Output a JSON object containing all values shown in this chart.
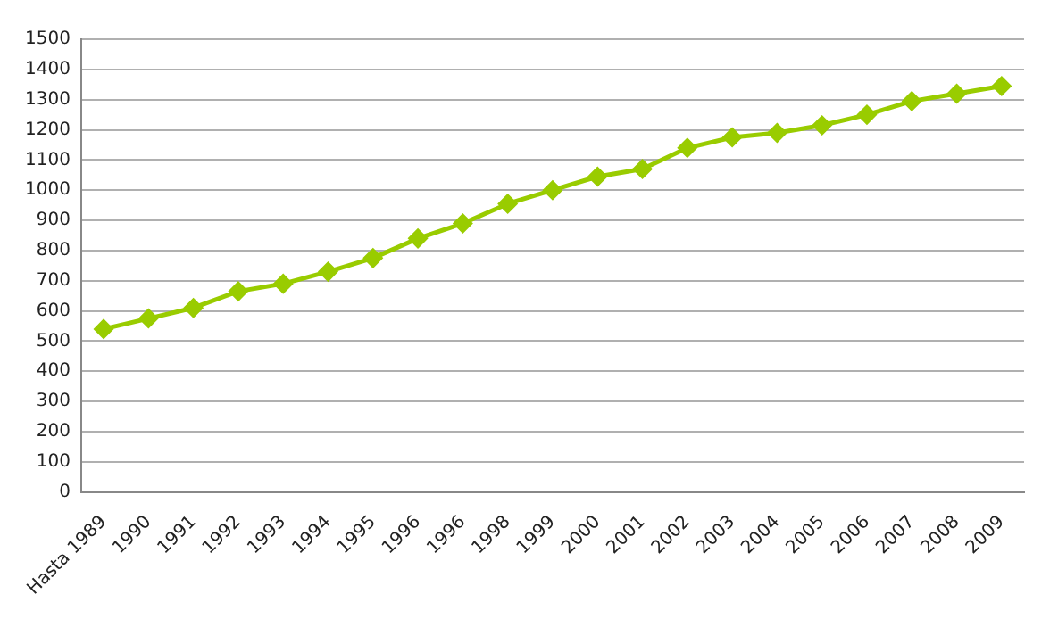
{
  "chart_data": {
    "type": "line",
    "categories": [
      "Hasta 1989",
      "1990",
      "1991",
      "1992",
      "1993",
      "1994",
      "1995",
      "1996",
      "1996",
      "1998",
      "1999",
      "2000",
      "2001",
      "2002",
      "2003",
      "2004",
      "2005",
      "2006",
      "2007",
      "2008",
      "2009"
    ],
    "series": [
      {
        "color": "#99cc00",
        "values": [
          540,
          575,
          610,
          665,
          690,
          730,
          775,
          840,
          890,
          955,
          1000,
          1045,
          1070,
          1140,
          1175,
          1190,
          1215,
          1250,
          1295,
          1320,
          1345
        ]
      }
    ],
    "ylim": [
      0,
      1500
    ],
    "yticks": [
      0,
      100,
      200,
      300,
      400,
      500,
      600,
      700,
      800,
      900,
      1000,
      1100,
      1200,
      1300,
      1400,
      1500
    ],
    "grid": "y",
    "legend": false,
    "marker": "diamond",
    "line_style": "solid"
  }
}
